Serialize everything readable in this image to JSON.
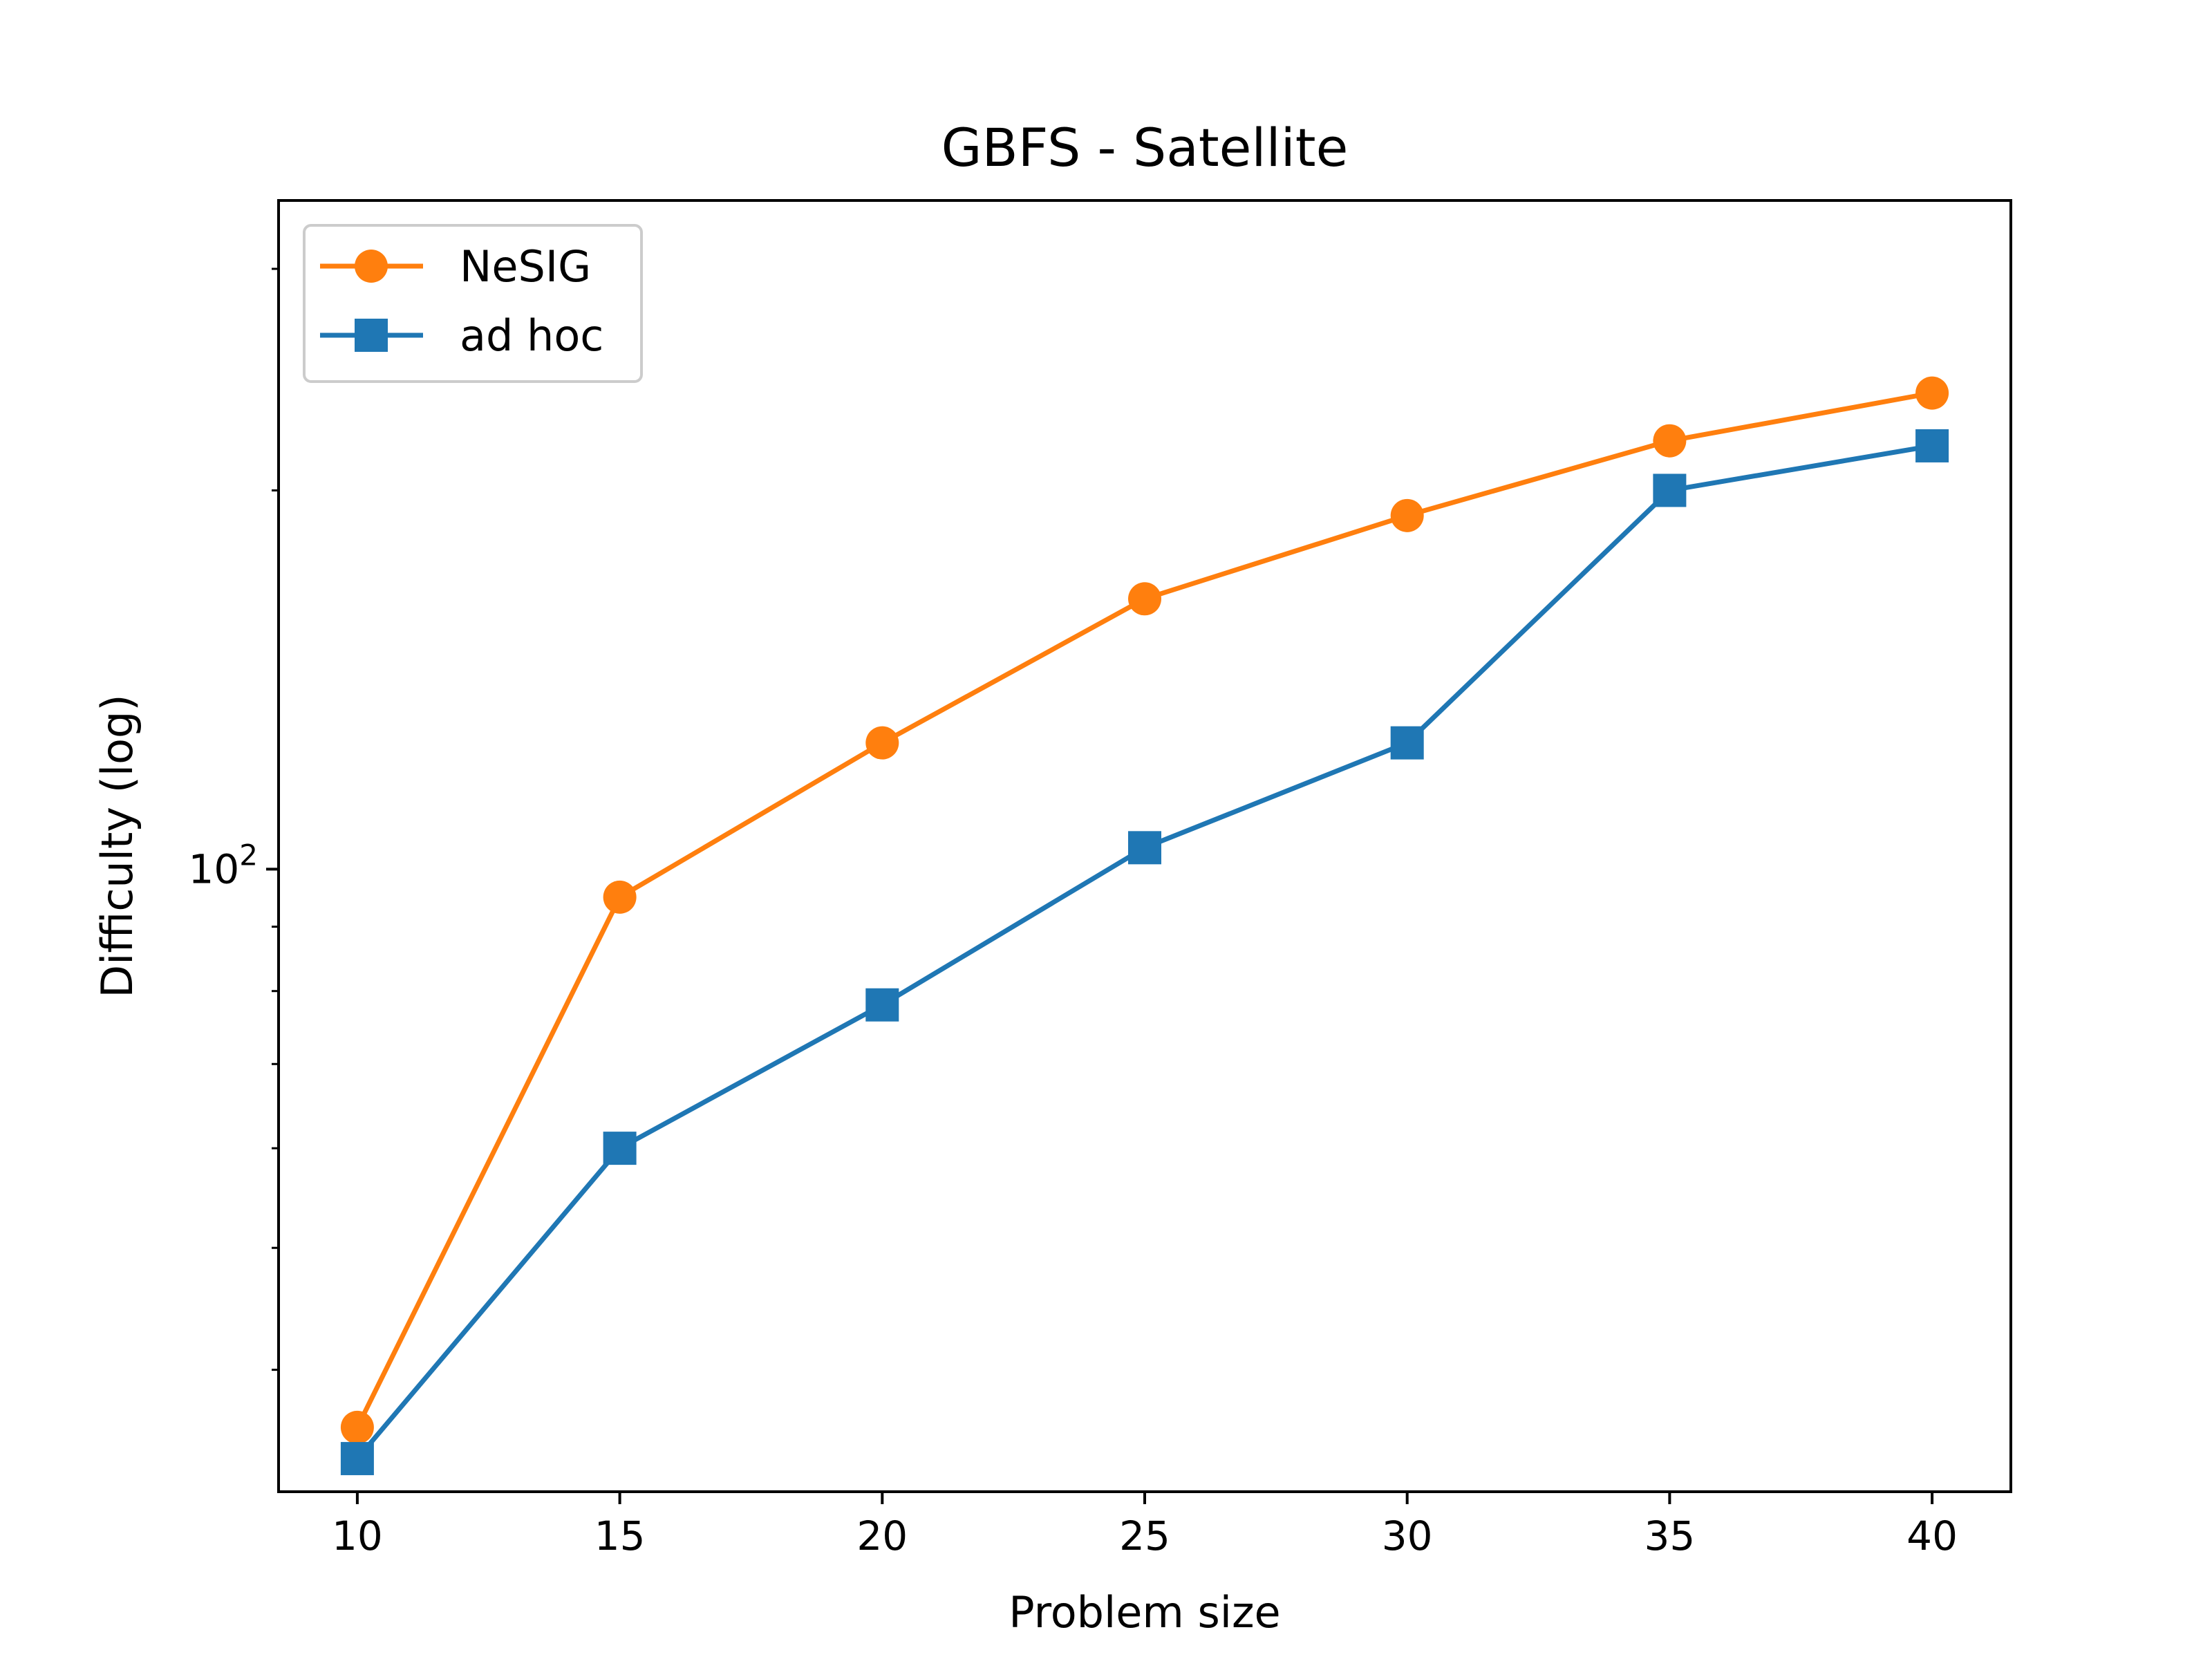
{
  "chart_data": {
    "type": "line",
    "title": "GBFS - Satellite",
    "xlabel": "Problem size",
    "ylabel": "Difficulty (log)",
    "yscale": "log",
    "x": [
      10,
      15,
      20,
      25,
      30,
      35,
      40
    ],
    "xticks": [
      "10",
      "15",
      "20",
      "25",
      "30",
      "35",
      "40"
    ],
    "xlim": [
      8.5,
      41.5
    ],
    "ylim": [
      32,
      340
    ],
    "y_major_tick": {
      "base": "10",
      "exponent": "2",
      "value": 100
    },
    "y_minor_ticks": [
      40,
      50,
      60,
      70,
      80,
      90,
      200,
      300
    ],
    "grid": false,
    "legend_position": "top-left",
    "series": [
      {
        "name": "NeSIG",
        "color": "#ff7f0e",
        "marker": "circle",
        "values": [
          36,
          95,
          126,
          164,
          191,
          219,
          239
        ]
      },
      {
        "name": "ad hoc",
        "color": "#1f77b4",
        "marker": "square",
        "values": [
          34,
          60,
          78,
          104,
          126,
          200,
          217
        ]
      }
    ]
  }
}
